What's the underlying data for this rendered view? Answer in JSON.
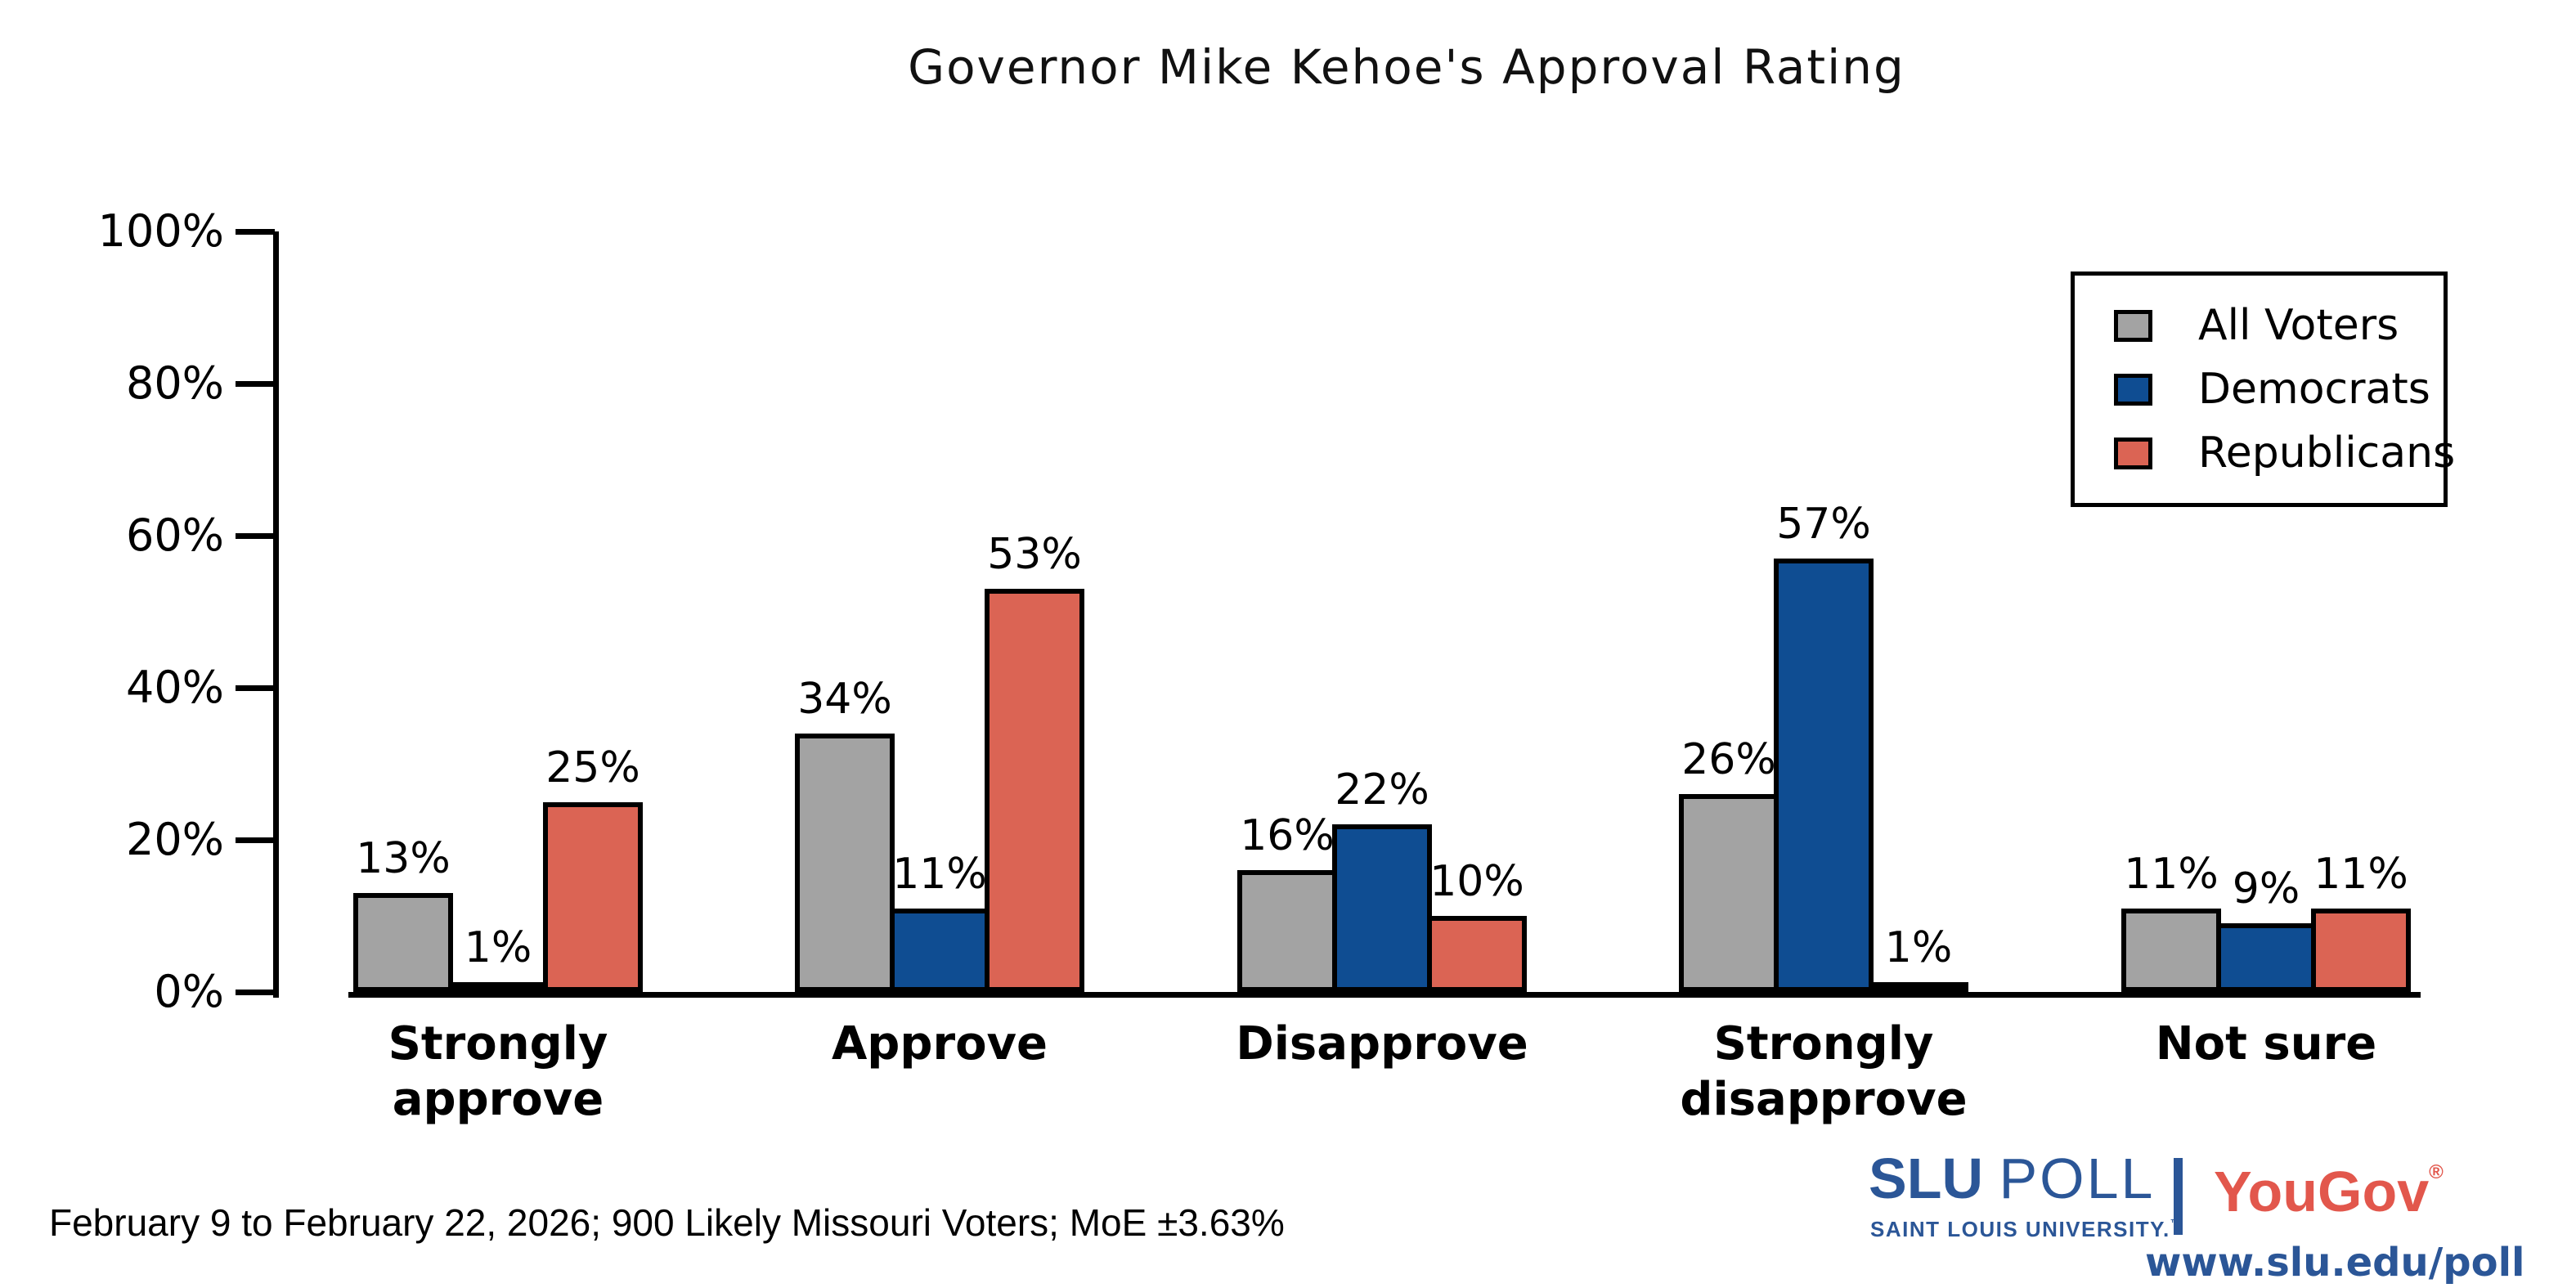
{
  "title": "Governor Mike Kehoe's Approval Rating",
  "footnote": "February 9 to February 22, 2026; 900 Likely Missouri Voters; MoE ±3.63%",
  "branding": {
    "slu": "SLU",
    "poll": "POLL",
    "subtitle": "SAINT LOUIS UNIVERSITY.",
    "subtitle_tm": "™",
    "yougov": "YouGov",
    "registered": "®",
    "url": "www.slu.edu/poll",
    "slu_blue": "#2B5697",
    "yougov_red": "#E2574C"
  },
  "chart_data": {
    "type": "bar",
    "title": "Governor Mike Kehoe's Approval Rating",
    "categories": [
      "Strongly approve",
      "Approve",
      "Disapprove",
      "Strongly disapprove",
      "Not sure"
    ],
    "series": [
      {
        "name": "All Voters",
        "color": "#A3A3A3",
        "values": [
          13,
          34,
          16,
          26,
          11
        ]
      },
      {
        "name": "Democrats",
        "color": "#0F4D92",
        "values": [
          1,
          11,
          22,
          57,
          9
        ]
      },
      {
        "name": "Republicans",
        "color": "#DB6454",
        "values": [
          25,
          53,
          10,
          1,
          11
        ]
      }
    ],
    "value_labels": [
      [
        "13%",
        "34%",
        "16%",
        "26%",
        "11%"
      ],
      [
        "1%",
        "11%",
        "22%",
        "57%",
        "9%"
      ],
      [
        "25%",
        "53%",
        "10%",
        "1%",
        "11%"
      ]
    ],
    "xlabel": "",
    "ylabel": "",
    "ylim": [
      0,
      100
    ],
    "yticks": [
      "0%",
      "20%",
      "40%",
      "60%",
      "80%",
      "100%"
    ],
    "grid": false,
    "legend_position": "top-right",
    "bar_outline_color": "#000000"
  }
}
